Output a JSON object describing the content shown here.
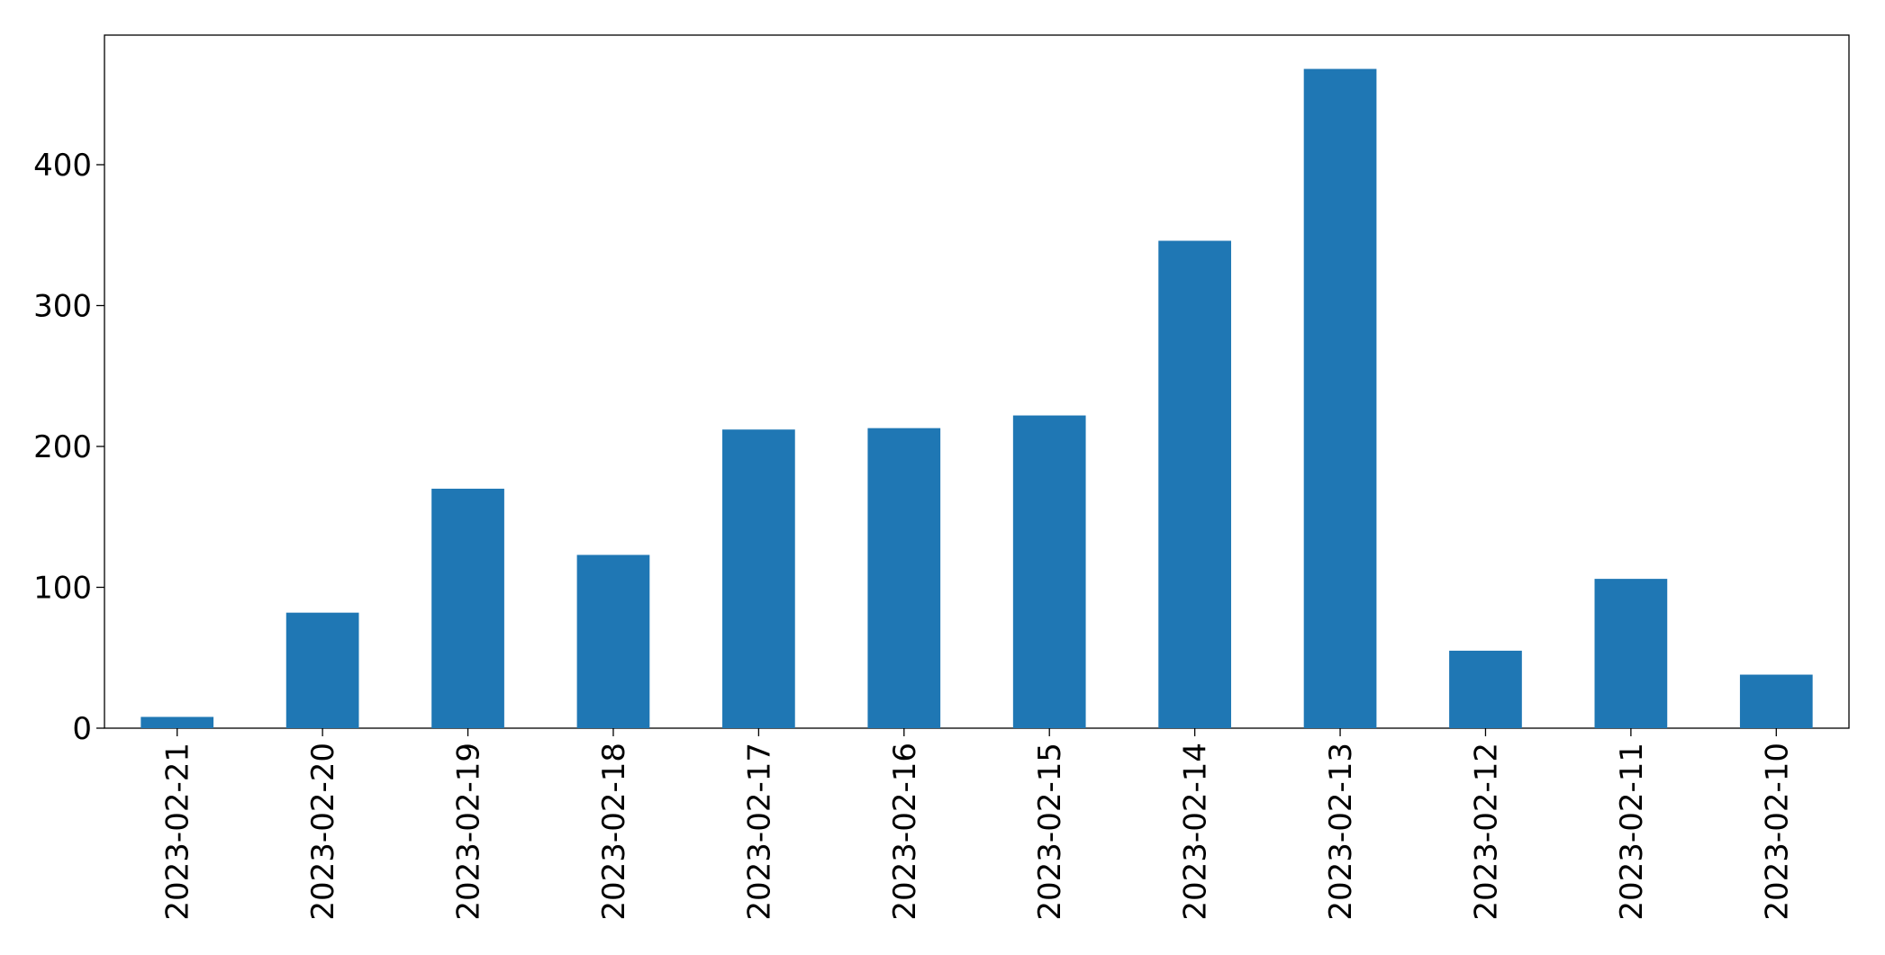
{
  "chart_data": {
    "type": "bar",
    "categories": [
      "2023-02-21",
      "2023-02-20",
      "2023-02-19",
      "2023-02-18",
      "2023-02-17",
      "2023-02-16",
      "2023-02-15",
      "2023-02-14",
      "2023-02-13",
      "2023-02-12",
      "2023-02-11",
      "2023-02-10"
    ],
    "values": [
      8,
      82,
      170,
      123,
      212,
      213,
      222,
      346,
      468,
      55,
      106,
      38
    ],
    "color": "#1f77b4",
    "ylim": [
      0,
      492
    ],
    "yticks": [
      0,
      100,
      200,
      300,
      400
    ],
    "grid": false
  }
}
